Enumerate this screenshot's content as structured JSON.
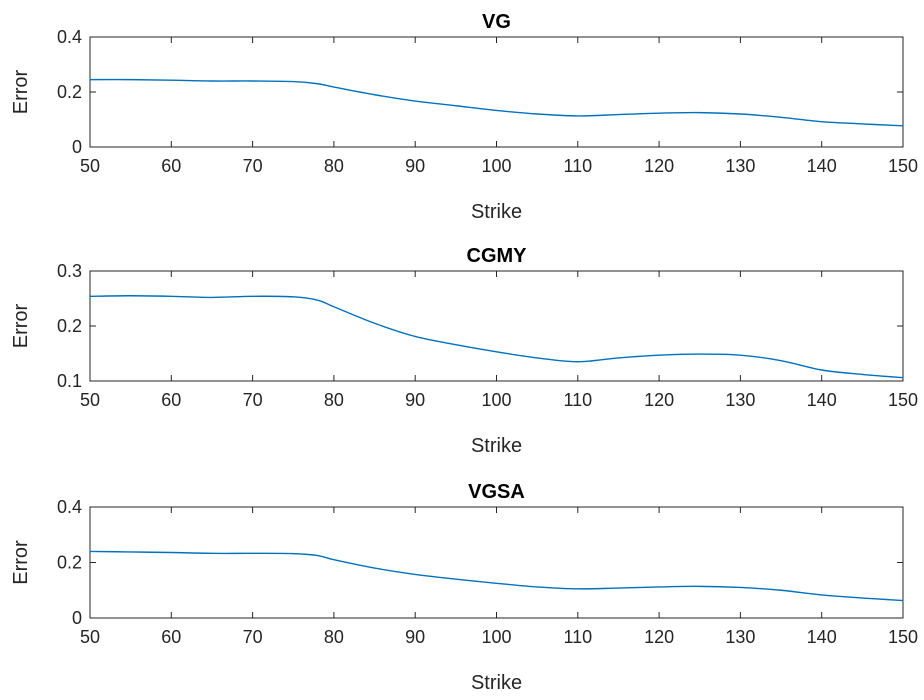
{
  "chart_data": [
    {
      "type": "line",
      "title": "VG",
      "xlabel": "Strike",
      "ylabel": "Error",
      "xlim": [
        50,
        150
      ],
      "ylim": [
        0,
        0.4
      ],
      "xticks": [
        "50",
        "60",
        "70",
        "80",
        "90",
        "100",
        "110",
        "120",
        "130",
        "140",
        "150"
      ],
      "yticks": [
        "0",
        "0.2",
        "0.4"
      ],
      "grid": false,
      "color": "#0072BD",
      "x": [
        50,
        55,
        60,
        65,
        70,
        75,
        78,
        80,
        85,
        90,
        95,
        100,
        105,
        110,
        115,
        120,
        125,
        130,
        135,
        140,
        145,
        150
      ],
      "y": [
        0.245,
        0.245,
        0.243,
        0.24,
        0.24,
        0.238,
        0.23,
        0.218,
        0.19,
        0.167,
        0.15,
        0.133,
        0.12,
        0.113,
        0.118,
        0.123,
        0.125,
        0.12,
        0.108,
        0.092,
        0.084,
        0.077
      ]
    },
    {
      "type": "line",
      "title": "CGMY",
      "xlabel": "Strike",
      "ylabel": "Error",
      "xlim": [
        50,
        150
      ],
      "ylim": [
        0.1,
        0.3
      ],
      "xticks": [
        "50",
        "60",
        "70",
        "80",
        "90",
        "100",
        "110",
        "120",
        "130",
        "140",
        "150"
      ],
      "yticks": [
        "0.1",
        "0.2",
        "0.3"
      ],
      "grid": false,
      "color": "#0072BD",
      "x": [
        50,
        55,
        60,
        65,
        70,
        75,
        78,
        80,
        85,
        90,
        95,
        100,
        105,
        110,
        115,
        120,
        125,
        130,
        135,
        140,
        145,
        150
      ],
      "y": [
        0.254,
        0.255,
        0.254,
        0.252,
        0.254,
        0.253,
        0.247,
        0.235,
        0.205,
        0.181,
        0.166,
        0.153,
        0.142,
        0.135,
        0.142,
        0.147,
        0.149,
        0.147,
        0.137,
        0.12,
        0.112,
        0.106
      ]
    },
    {
      "type": "line",
      "title": "VGSA",
      "xlabel": "Strike",
      "ylabel": "Error",
      "xlim": [
        50,
        150
      ],
      "ylim": [
        0,
        0.4
      ],
      "xticks": [
        "50",
        "60",
        "70",
        "80",
        "90",
        "100",
        "110",
        "120",
        "130",
        "140",
        "150"
      ],
      "yticks": [
        "0",
        "0.2",
        "0.4"
      ],
      "grid": false,
      "color": "#0072BD",
      "x": [
        50,
        55,
        60,
        65,
        70,
        75,
        78,
        80,
        85,
        90,
        95,
        100,
        105,
        110,
        115,
        120,
        125,
        130,
        135,
        140,
        145,
        150
      ],
      "y": [
        0.24,
        0.238,
        0.236,
        0.233,
        0.233,
        0.232,
        0.225,
        0.21,
        0.18,
        0.157,
        0.14,
        0.125,
        0.112,
        0.105,
        0.108,
        0.112,
        0.114,
        0.11,
        0.1,
        0.083,
        0.072,
        0.063
      ]
    }
  ]
}
